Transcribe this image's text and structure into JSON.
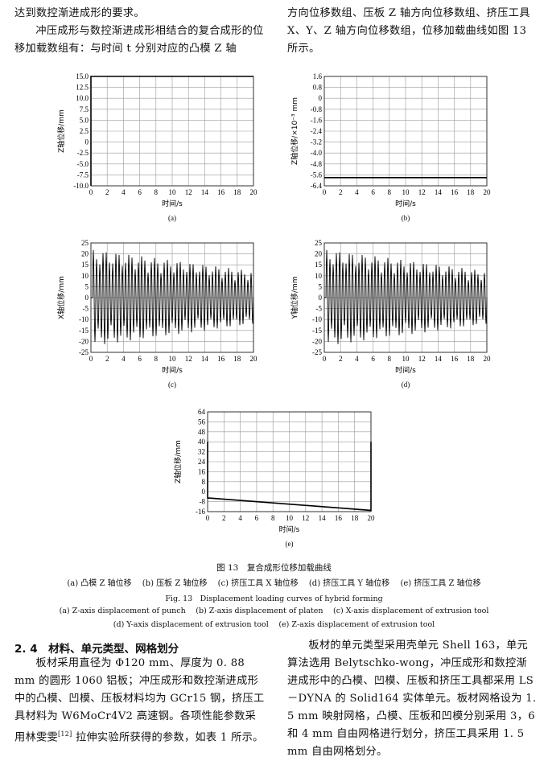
{
  "text_top": {
    "left_line1": "达到数控渐进成形的要求。",
    "left_para": "冲压成形与数控渐进成形相结合的复合成形的位移加载数组有：与时间 t 分别对应的凸模 Z 轴",
    "right_para": "方向位移数组、压板 Z 轴方向位移数组、挤压工具 X、Y、Z 轴方向位移数组，位移加载曲线如图 13 所示。"
  },
  "figure": {
    "caption_cn": "图 13　复合成形位移加载曲线",
    "sub_cn": [
      "(a) 凸模 Z 轴位移",
      "(b) 压板 Z 轴位移",
      "(c) 挤压工具 X 轴位移",
      "(d) 挤压工具 Y 轴位移",
      "(e) 挤压工具 Z 轴位移"
    ],
    "caption_en": "Fig. 13　Displacement loading curves of hybrid forming",
    "sub_en_1": [
      "(a) Z-axis displacement of punch",
      "(b) Z-axis displacement of platen",
      "(c) X-axis displacement of extrusion tool"
    ],
    "sub_en_2": [
      "(d) Y-axis displacement of extrusion tool",
      "(e) Z-axis displacement of extrusion tool"
    ]
  },
  "chart_data": [
    {
      "id": "a",
      "panel_label": "(a)",
      "type": "line",
      "xlabel": "时间/s",
      "ylabel": "Z轴位移/mm",
      "xlim": [
        0,
        20
      ],
      "ylim": [
        -10,
        15
      ],
      "xticks": [
        "0",
        "2",
        "4",
        "6",
        "8",
        "10",
        "12",
        "14",
        "16",
        "18",
        "20"
      ],
      "yticks": [
        "15.0",
        "12.5",
        "10.0",
        "7.5",
        "5.0",
        "2.5",
        "0",
        "-2.5",
        "-5.0",
        "-7.5",
        "-10.0"
      ],
      "grid": true,
      "series": [
        {
          "x": [
            0,
            0,
            0.2,
            20
          ],
          "y": [
            -10,
            15,
            15,
            15
          ]
        }
      ]
    },
    {
      "id": "b",
      "panel_label": "(b)",
      "type": "line",
      "xlabel": "时间/s",
      "ylabel": "Z轴位移/×10⁻³ mm",
      "xlim": [
        0,
        20
      ],
      "ylim": [
        -6.4,
        1.6
      ],
      "xticks": [
        "0",
        "2",
        "4",
        "6",
        "8",
        "10",
        "12",
        "14",
        "16",
        "18",
        "20"
      ],
      "yticks": [
        "1.6",
        "0.8",
        "0",
        "-0.8",
        "-1.6",
        "-2.4",
        "-3.2",
        "-4.0",
        "-4.8",
        "-5.6",
        "-6.4"
      ],
      "grid": true,
      "series": [
        {
          "x": [
            0,
            20
          ],
          "y": [
            -5.8,
            -5.8
          ]
        }
      ]
    },
    {
      "id": "c",
      "panel_label": "(c)",
      "type": "line",
      "xlabel": "时间/s",
      "ylabel": "X轴位移/mm",
      "xlim": [
        0,
        20
      ],
      "ylim": [
        -25,
        25
      ],
      "xticks": [
        "0",
        "2",
        "4",
        "6",
        "8",
        "10",
        "12",
        "14",
        "16",
        "18",
        "20"
      ],
      "yticks": [
        "25",
        "20",
        "15",
        "10",
        "5",
        "0",
        "-5",
        "-10",
        "-15",
        "-20",
        "-25"
      ],
      "grid": true,
      "oscillation": {
        "amp_start": 22,
        "amp_end": 12,
        "cycles": 50,
        "t_start": 0.2,
        "t_end": 20
      }
    },
    {
      "id": "d",
      "panel_label": "(d)",
      "type": "line",
      "xlabel": "时间/s",
      "ylabel": "Y轴位移/mm",
      "xlim": [
        0,
        20
      ],
      "ylim": [
        -25,
        25
      ],
      "xticks": [
        "0",
        "2",
        "4",
        "6",
        "8",
        "10",
        "12",
        "14",
        "16",
        "18",
        "20"
      ],
      "yticks": [
        "25",
        "20",
        "15",
        "10",
        "5",
        "0",
        "-5",
        "-10",
        "-15",
        "-20",
        "-25"
      ],
      "grid": true,
      "oscillation": {
        "amp_start": 22,
        "amp_end": 12,
        "cycles": 50,
        "t_start": 0.2,
        "t_end": 20
      }
    },
    {
      "id": "e",
      "panel_label": "(e)",
      "type": "line",
      "xlabel": "时间/s",
      "ylabel": "Z轴位移/mm",
      "xlim": [
        0,
        20
      ],
      "ylim": [
        -16,
        64
      ],
      "xticks": [
        "0",
        "2",
        "4",
        "6",
        "8",
        "10",
        "12",
        "14",
        "16",
        "18",
        "20"
      ],
      "yticks": [
        "64",
        "56",
        "48",
        "40",
        "32",
        "24",
        "16",
        "8",
        "0",
        "-8",
        "-16"
      ],
      "grid": true,
      "series": [
        {
          "x": [
            0,
            0,
            20,
            20
          ],
          "y": [
            40,
            -5,
            -15,
            40
          ]
        }
      ]
    }
  ],
  "section": {
    "heading": "2. 4　材料、单元类型、网格划分",
    "left_para": "板材采用直径为 Φ120 mm、厚度为 0. 88 mm 的圆形 1060 铝板；冲压成形和数控渐进成形中的凸模、凹模、压板材料均为 GCr15 钢，挤压工具材料为 W6MoCr4V2 高速钢。各项性能参数采用林雯雯",
    "left_ref": "[12]",
    "left_tail": " 拉伸实验所获得的参数，如表 1 所示。",
    "right_para": "板材的单元类型采用壳单元 Shell 163，单元算法选用 Belytschko-wong，冲压成形和数控渐进成形中的凸模、凹模、压板和挤压工具都采用 LS－DYNA 的 Solid164 实体单元。板材网格设为 1. 5 mm 映射网格，凸模、压板和凹模分别采用 3，6 和 4 mm 自由网格进行划分，挤压工具采用 1. 5 mm 自由网格划分。"
  }
}
